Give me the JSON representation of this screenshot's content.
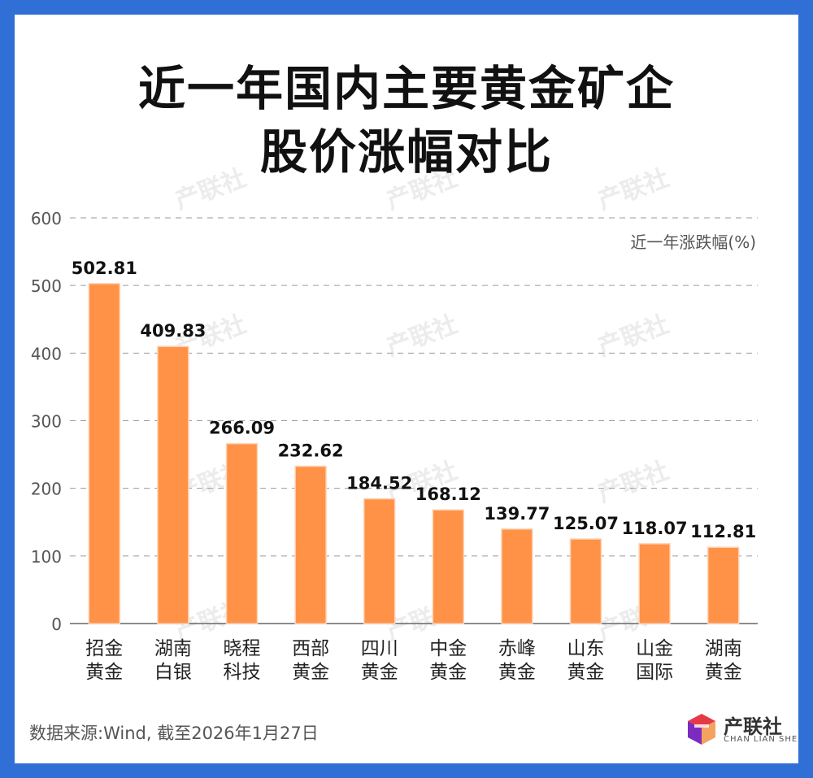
{
  "title_lines": [
    "近一年国内主要黄金矿企",
    "股价涨幅对比"
  ],
  "source": "数据来源:Wind, 截至2026年1月27日",
  "logo": {
    "name": "产联社",
    "sub": "CHAN LIAN SHE"
  },
  "colors": {
    "frame": "#2f6fd6",
    "bar": "#ff9247",
    "text": "#111111",
    "axis": "#666666"
  },
  "chart_data": {
    "type": "bar",
    "ylabel": "近一年涨跌幅(%)",
    "ylim": [
      0,
      600
    ],
    "yticks": [
      0,
      100,
      200,
      300,
      400,
      500,
      600
    ],
    "grid": true,
    "categories": [
      [
        "招金",
        "黄金"
      ],
      [
        "湖南",
        "白银"
      ],
      [
        "晓程",
        "科技"
      ],
      [
        "西部",
        "黄金"
      ],
      [
        "四川",
        "黄金"
      ],
      [
        "中金",
        "黄金"
      ],
      [
        "赤峰",
        "黄金"
      ],
      [
        "山东",
        "黄金"
      ],
      [
        "山金",
        "国际"
      ],
      [
        "湖南",
        "黄金"
      ]
    ],
    "values": [
      502.81,
      409.83,
      266.09,
      232.62,
      184.52,
      168.12,
      139.77,
      125.07,
      118.07,
      112.81
    ],
    "value_labels": [
      "502.81",
      "409.83",
      "266.09",
      "232.62",
      "184.52",
      "168.12",
      "139.77",
      "125.07",
      "118.07",
      "112.81"
    ]
  }
}
